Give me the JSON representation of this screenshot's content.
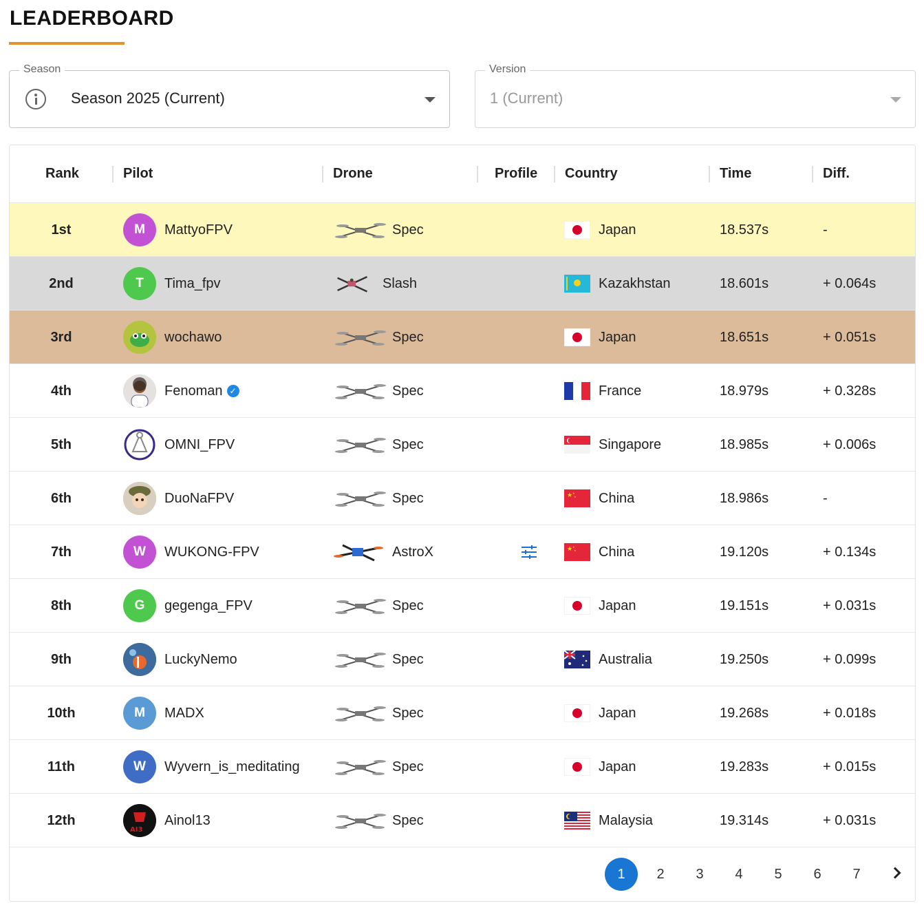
{
  "page": {
    "title": "LEADERBOARD"
  },
  "filters": {
    "season": {
      "label": "Season",
      "value": "Season 2025 (Current)"
    },
    "version": {
      "label": "Version",
      "value": "1 (Current)"
    }
  },
  "table": {
    "headers": {
      "rank": "Rank",
      "pilot": "Pilot",
      "drone": "Drone",
      "profile": "Profile",
      "country": "Country",
      "time": "Time",
      "diff": "Diff."
    },
    "rows": [
      {
        "rank": "1st",
        "pilot": "MattyoFPV",
        "avatar_letter": "M",
        "avatar_color": "#c251d4",
        "drone": "Spec",
        "country": "Japan",
        "time": "18.537s",
        "diff": "-",
        "row_color": "#fff8bd"
      },
      {
        "rank": "2nd",
        "pilot": "Tima_fpv",
        "avatar_letter": "T",
        "avatar_color": "#4ec94e",
        "drone": "Slash",
        "country": "Kazakhstan",
        "time": "18.601s",
        "diff": "+ 0.064s",
        "row_color": "#d9d9d9"
      },
      {
        "rank": "3rd",
        "pilot": "wochawo",
        "avatar_letter": "",
        "avatar_color": "#b5c43e",
        "drone": "Spec",
        "country": "Japan",
        "time": "18.651s",
        "diff": "+ 0.051s",
        "row_color": "#dcbb9b"
      },
      {
        "rank": "4th",
        "pilot": "Fenoman",
        "avatar_letter": "",
        "avatar_color": "#cfc5c0",
        "drone": "Spec",
        "country": "France",
        "time": "18.979s",
        "diff": "+ 0.328s",
        "row_color": "#ffffff",
        "verified": true
      },
      {
        "rank": "5th",
        "pilot": "OMNI_FPV",
        "avatar_letter": "",
        "avatar_color": "#ffffff",
        "drone": "Spec",
        "country": "Singapore",
        "time": "18.985s",
        "diff": "+ 0.006s",
        "row_color": "#ffffff"
      },
      {
        "rank": "6th",
        "pilot": "DuoNaFPV",
        "avatar_letter": "",
        "avatar_color": "#b49a7c",
        "drone": "Spec",
        "country": "China",
        "time": "18.986s",
        "diff": "-",
        "row_color": "#ffffff"
      },
      {
        "rank": "7th",
        "pilot": "WUKONG-FPV",
        "avatar_letter": "W",
        "avatar_color": "#c251d4",
        "drone": "AstroX",
        "country": "China",
        "time": "19.120s",
        "diff": "+ 0.134s",
        "row_color": "#ffffff",
        "profile_icon": true
      },
      {
        "rank": "8th",
        "pilot": "gegenga_FPV",
        "avatar_letter": "G",
        "avatar_color": "#4ec94e",
        "drone": "Spec",
        "country": "Japan",
        "time": "19.151s",
        "diff": "+ 0.031s",
        "row_color": "#ffffff"
      },
      {
        "rank": "9th",
        "pilot": "LuckyNemo",
        "avatar_letter": "",
        "avatar_color": "#3d6b9e",
        "drone": "Spec",
        "country": "Australia",
        "time": "19.250s",
        "diff": "+ 0.099s",
        "row_color": "#ffffff"
      },
      {
        "rank": "10th",
        "pilot": "MADX",
        "avatar_letter": "M",
        "avatar_color": "#5a9bd5",
        "drone": "Spec",
        "country": "Japan",
        "time": "19.268s",
        "diff": "+ 0.018s",
        "row_color": "#ffffff"
      },
      {
        "rank": "11th",
        "pilot": "Wyvern_is_meditating",
        "avatar_letter": "W",
        "avatar_color": "#3f6cc4",
        "drone": "Spec",
        "country": "Japan",
        "time": "19.283s",
        "diff": "+ 0.015s",
        "row_color": "#ffffff"
      },
      {
        "rank": "12th",
        "pilot": "Ainol13",
        "avatar_letter": "",
        "avatar_color": "#111111",
        "drone": "Spec",
        "country": "Malaysia",
        "time": "19.314s",
        "diff": "+ 0.031s",
        "row_color": "#ffffff"
      }
    ]
  },
  "pagination": {
    "pages": [
      "1",
      "2",
      "3",
      "4",
      "5",
      "6",
      "7"
    ],
    "current": "1"
  },
  "colors": {
    "accent": "#e3932b",
    "primary": "#1976d2"
  }
}
